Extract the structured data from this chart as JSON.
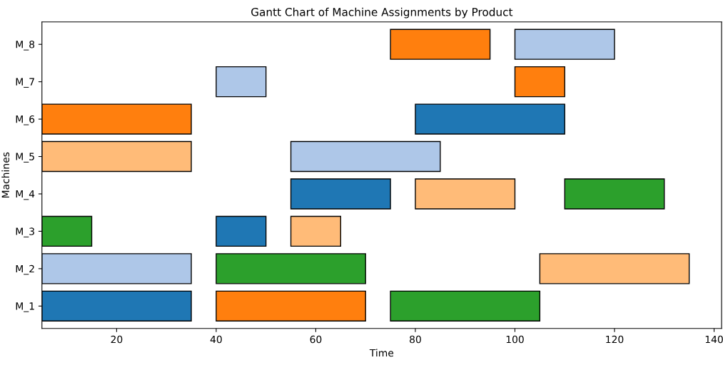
{
  "chart_data": {
    "type": "bar",
    "orientation": "horizontal",
    "title": "Gantt Chart of Machine Assignments by Product",
    "xlabel": "Time",
    "ylabel": "Machines",
    "categories": [
      "M_8",
      "M_7",
      "M_6",
      "M_5",
      "M_4",
      "M_3",
      "M_2",
      "M_1"
    ],
    "series": [
      {
        "color": "#1f77b4",
        "base": [
          null,
          null,
          80,
          null,
          55,
          40,
          null,
          5
        ],
        "values": [
          null,
          null,
          30,
          null,
          20,
          10,
          null,
          30
        ]
      },
      {
        "color": "#aec7e8",
        "base": [
          100,
          40,
          null,
          55,
          null,
          null,
          5,
          null
        ],
        "values": [
          20,
          10,
          null,
          30,
          null,
          null,
          30,
          null
        ]
      },
      {
        "color": "#ff7f0e",
        "base": [
          75,
          100,
          5,
          null,
          null,
          null,
          null,
          40
        ],
        "values": [
          20,
          10,
          30,
          null,
          null,
          null,
          null,
          30
        ]
      },
      {
        "color": "#ffbb78",
        "base": [
          null,
          null,
          null,
          5,
          80,
          55,
          105,
          null
        ],
        "values": [
          null,
          null,
          null,
          30,
          20,
          10,
          30,
          null
        ]
      },
      {
        "color": "#2ca02c",
        "base": [
          null,
          null,
          null,
          null,
          110,
          5,
          40,
          75
        ],
        "values": [
          null,
          null,
          null,
          null,
          20,
          10,
          30,
          30
        ]
      }
    ],
    "xlim": [
      5,
      141.5
    ],
    "xticks": [
      20,
      40,
      60,
      80,
      100,
      120,
      140
    ],
    "grid": false,
    "legend": false
  }
}
